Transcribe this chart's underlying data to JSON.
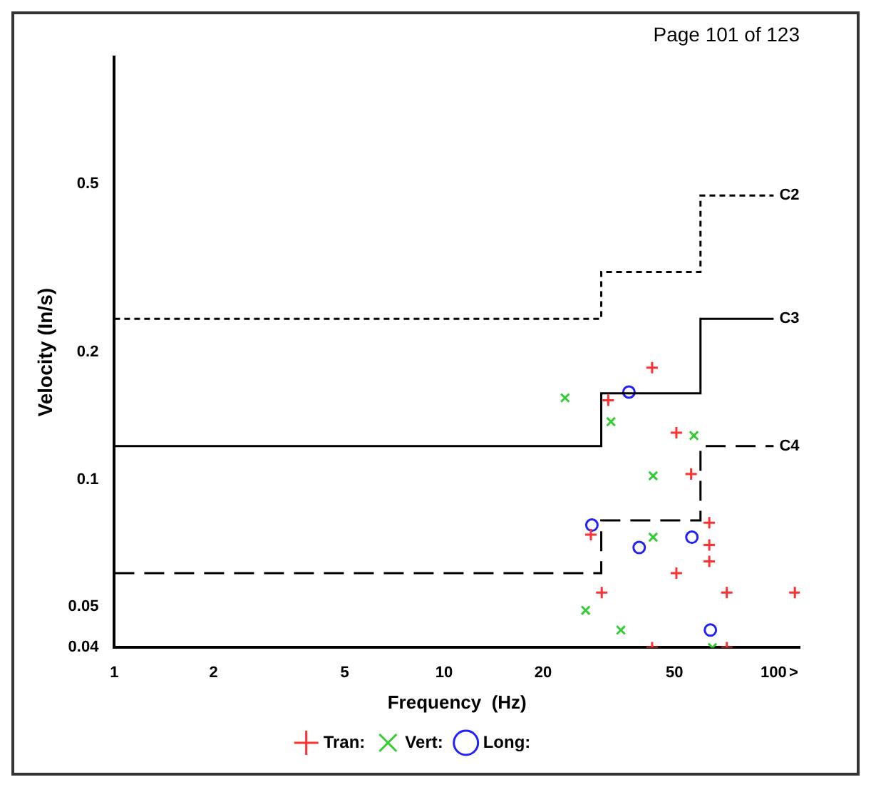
{
  "chart_data": {
    "type": "scatter",
    "xlabel": "Frequency  (Hz)",
    "ylabel": "Velocity (In/s)",
    "log": "xy",
    "xlim": [
      1,
      120
    ],
    "ylim": [
      0.04,
      1
    ],
    "xticks": [
      1,
      2,
      5,
      10,
      20,
      50,
      100,
      {
        "value": 115,
        "label": ">"
      }
    ],
    "yticks": [
      0.04,
      0.05,
      0.1,
      0.2,
      0.5
    ],
    "grid": false,
    "legend": "bottom",
    "annotations": [
      "Page 101 of 123"
    ],
    "series": [
      {
        "name": "C2",
        "type": "step",
        "color": "#000000",
        "line_style": "dotted",
        "marker": "none",
        "x": [
          1,
          30,
          60,
          100
        ],
        "values": [
          0.24,
          0.31,
          0.47,
          0.47
        ]
      },
      {
        "name": "C3",
        "type": "step",
        "color": "#000000",
        "line_style": "solid",
        "marker": "none",
        "x": [
          1,
          30,
          60,
          100
        ],
        "values": [
          0.12,
          0.16,
          0.24,
          0.24
        ]
      },
      {
        "name": "C4",
        "type": "step",
        "color": "#000000",
        "line_style": "dashed",
        "marker": "none",
        "x": [
          1,
          30,
          60,
          100
        ],
        "values": [
          0.06,
          0.08,
          0.12,
          0.12
        ]
      },
      {
        "name": "Tran:",
        "type": "scatter",
        "color": "#ff3030",
        "marker": "cross",
        "x": [
          42.8,
          31.5,
          50.7,
          56.2,
          63.8,
          27.9,
          63.8,
          63.8,
          50.7,
          30.1,
          72.1,
          116,
          42.8,
          72.1
        ],
        "values": [
          0.184,
          0.154,
          0.129,
          0.103,
          0.079,
          0.074,
          0.07,
          0.064,
          0.06,
          0.054,
          0.054,
          0.054,
          0.04,
          0.04
        ]
      },
      {
        "name": "Vert:",
        "type": "scatter",
        "color": "#33cc33",
        "marker": "x",
        "x": [
          23.3,
          32.1,
          57.3,
          43.1,
          43.1,
          26.9,
          34.4,
          65.2
        ],
        "values": [
          0.156,
          0.137,
          0.127,
          0.102,
          0.073,
          0.049,
          0.044,
          0.04
        ]
      },
      {
        "name": "Long:",
        "type": "scatter",
        "color": "#2020ff",
        "marker": "circle",
        "x": [
          36.4,
          28.1,
          39.1,
          56.5,
          64.3
        ],
        "values": [
          0.161,
          0.078,
          0.069,
          0.073,
          0.044
        ]
      }
    ]
  }
}
